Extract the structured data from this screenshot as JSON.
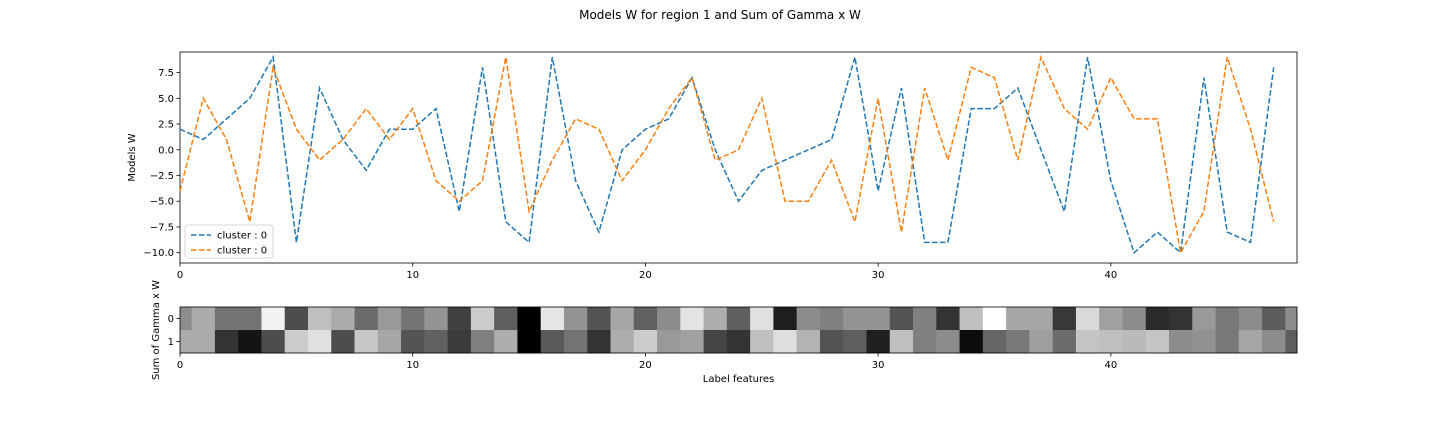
{
  "chart_data": [
    {
      "type": "line",
      "title": "Models W for region 1 and Sum of Gamma x W",
      "xlabel": "",
      "ylabel": "Models W",
      "xlim": [
        0,
        48
      ],
      "ylim": [
        -11,
        9.5
      ],
      "xticks": [
        "0",
        "10",
        "20",
        "30",
        "40"
      ],
      "yticks": [
        "7.5",
        "5.0",
        "2.5",
        "0.0",
        "−2.5",
        "−5.0",
        "−7.5",
        "−10.0"
      ],
      "grid": false,
      "legend_position": "lower-left",
      "series": [
        {
          "name": "cluster : 0",
          "color": "#1f77b4",
          "line_style": "dashed",
          "x": [
            0,
            1,
            2,
            3,
            4,
            5,
            6,
            7,
            8,
            9,
            10,
            11,
            12,
            13,
            14,
            15,
            16,
            17,
            18,
            19,
            20,
            21,
            22,
            23,
            24,
            25,
            26,
            27,
            28,
            29,
            30,
            31,
            32,
            33,
            34,
            35,
            36,
            37,
            38,
            39,
            40,
            41,
            42,
            43,
            44,
            45,
            46,
            47
          ],
          "values": [
            2,
            1,
            3,
            5,
            9,
            -9,
            6,
            1,
            -2,
            2,
            2,
            4,
            -6,
            8,
            -7,
            -9,
            9,
            -3,
            -8,
            0,
            2,
            3,
            7,
            0,
            -5,
            -2,
            -1,
            0,
            1,
            9,
            -4,
            6,
            -9,
            -9,
            4,
            4,
            6,
            0,
            -6,
            9,
            -3,
            -10,
            -8,
            -10,
            7,
            -8,
            -9,
            8
          ]
        },
        {
          "name": "cluster : 0",
          "color": "#ff7f0e",
          "line_style": "dashed",
          "x": [
            0,
            1,
            2,
            3,
            4,
            5,
            6,
            7,
            8,
            9,
            10,
            11,
            12,
            13,
            14,
            15,
            16,
            17,
            18,
            19,
            20,
            21,
            22,
            23,
            24,
            25,
            26,
            27,
            28,
            29,
            30,
            31,
            32,
            33,
            34,
            35,
            36,
            37,
            38,
            39,
            40,
            41,
            42,
            43,
            44,
            45,
            46,
            47
          ],
          "values": [
            -4,
            5,
            1,
            -7,
            8,
            2,
            -1,
            1,
            4,
            1,
            4,
            -3,
            -5,
            -3,
            9,
            -6,
            -1,
            3,
            2,
            -3,
            0,
            4,
            7,
            -1,
            0,
            5,
            -5,
            -5,
            -1,
            -7,
            5,
            -8,
            6,
            -1,
            8,
            7,
            -1,
            9,
            4,
            2,
            7,
            3,
            3,
            -10,
            -6,
            9,
            2,
            -7
          ]
        }
      ]
    },
    {
      "type": "heatmap",
      "xlabel": "Label features",
      "ylabel": "Sum of Gamma x W",
      "xlim": [
        0,
        48
      ],
      "xticks": [
        "0",
        "10",
        "20",
        "30",
        "40"
      ],
      "yticks": [
        "0",
        "1"
      ],
      "colormap": "gray",
      "rows": [
        [
          0.55,
          0.67,
          0.45,
          0.45,
          0.95,
          0.3,
          0.75,
          0.67,
          0.42,
          0.6,
          0.45,
          0.58,
          0.25,
          0.8,
          0.37,
          0.0,
          0.9,
          0.58,
          0.32,
          0.65,
          0.38,
          0.55,
          0.89,
          0.68,
          0.37,
          0.88,
          0.12,
          0.55,
          0.5,
          0.58,
          0.58,
          0.33,
          0.5,
          0.2,
          0.75,
          1.0,
          0.65,
          0.65,
          0.22,
          0.85,
          0.63,
          0.55,
          0.17,
          0.2,
          0.6,
          0.47,
          0.55,
          0.36,
          0.55
        ],
        [
          0.67,
          0.67,
          0.2,
          0.08,
          0.3,
          0.8,
          0.88,
          0.3,
          0.78,
          0.65,
          0.33,
          0.38,
          0.23,
          0.5,
          0.68,
          0.0,
          0.35,
          0.45,
          0.2,
          0.68,
          0.8,
          0.6,
          0.63,
          0.27,
          0.2,
          0.75,
          0.87,
          0.7,
          0.33,
          0.37,
          0.12,
          0.75,
          0.5,
          0.55,
          0.05,
          0.4,
          0.47,
          0.62,
          0.42,
          0.77,
          0.75,
          0.73,
          0.77,
          0.55,
          0.57,
          0.47,
          0.65,
          0.55,
          0.37
        ]
      ]
    }
  ]
}
